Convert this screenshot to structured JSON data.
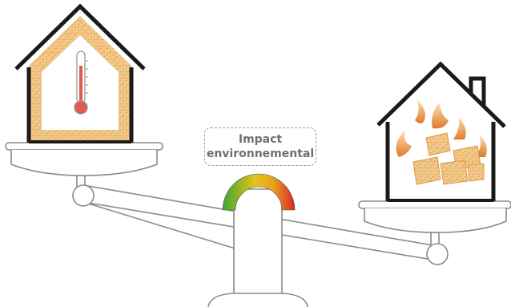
{
  "label": {
    "line1": "Impact",
    "line2": "environnemental"
  },
  "colors": {
    "outline": "#8a8a8a",
    "house_outline": "#1a1a1a",
    "insulation": "#f2c98a",
    "thermometer": "#e05a4e",
    "gauge_green": "#3fa535",
    "gauge_yellow": "#e6c21a",
    "gauge_red": "#d9262b",
    "flame": "#e8a040"
  },
  "icons": {
    "left_house": "insulated-house-icon",
    "right_house": "burning-house-icon",
    "scale": "balance-scale-icon",
    "gauge": "impact-gauge-icon"
  }
}
